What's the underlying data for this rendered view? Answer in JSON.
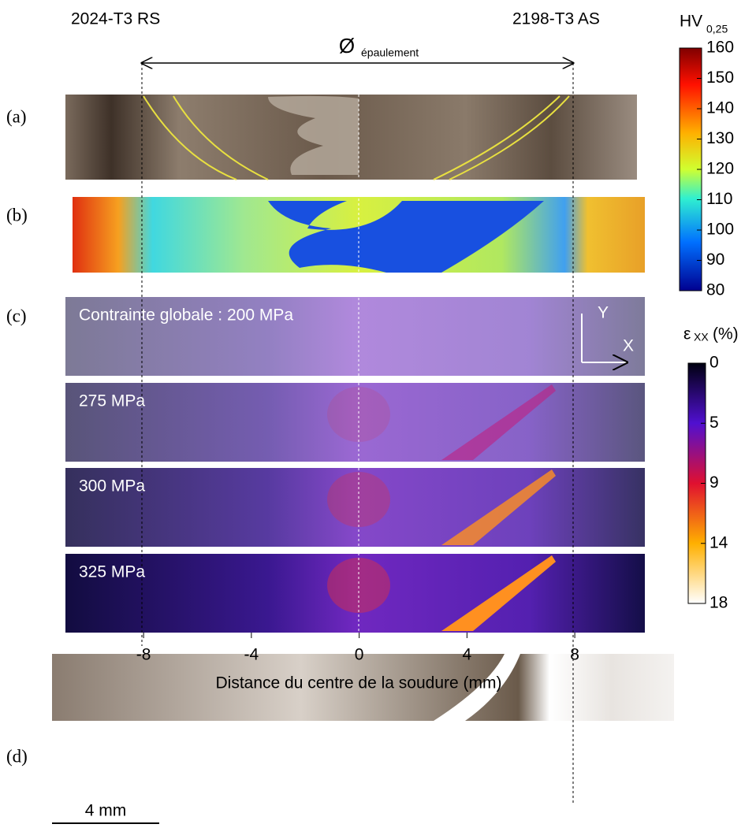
{
  "labels": {
    "left": "2024-T3 RS",
    "right": "2198-T3 AS",
    "diameter": "Ø",
    "diameter_sub": "épaulement"
  },
  "panels": [
    "(a)",
    "(b)",
    "(c)",
    "(d)"
  ],
  "stress_labels": [
    "Contrainte globale : 200 MPa",
    "275 MPa",
    "300 MPa",
    "325 MPa"
  ],
  "axis": {
    "label": "Distance du centre de la soudure (mm)",
    "xlim": [
      -10.9,
      10.6
    ],
    "xticks": [
      -8,
      -4,
      0,
      4,
      8
    ]
  },
  "hardness_bar": {
    "title": "HV",
    "title_sub": "0,25",
    "lim": [
      80,
      160
    ],
    "ticks": [
      160,
      150,
      140,
      130,
      120,
      110,
      100,
      90,
      80
    ]
  },
  "strain_bar": {
    "title": "ε",
    "title_sub": "XX",
    "unit": "(%)",
    "ticks": [
      0,
      5,
      9,
      14,
      18
    ]
  },
  "axes_icon": {
    "x": "X",
    "y": "Y"
  },
  "scale_bar": "4 mm"
}
